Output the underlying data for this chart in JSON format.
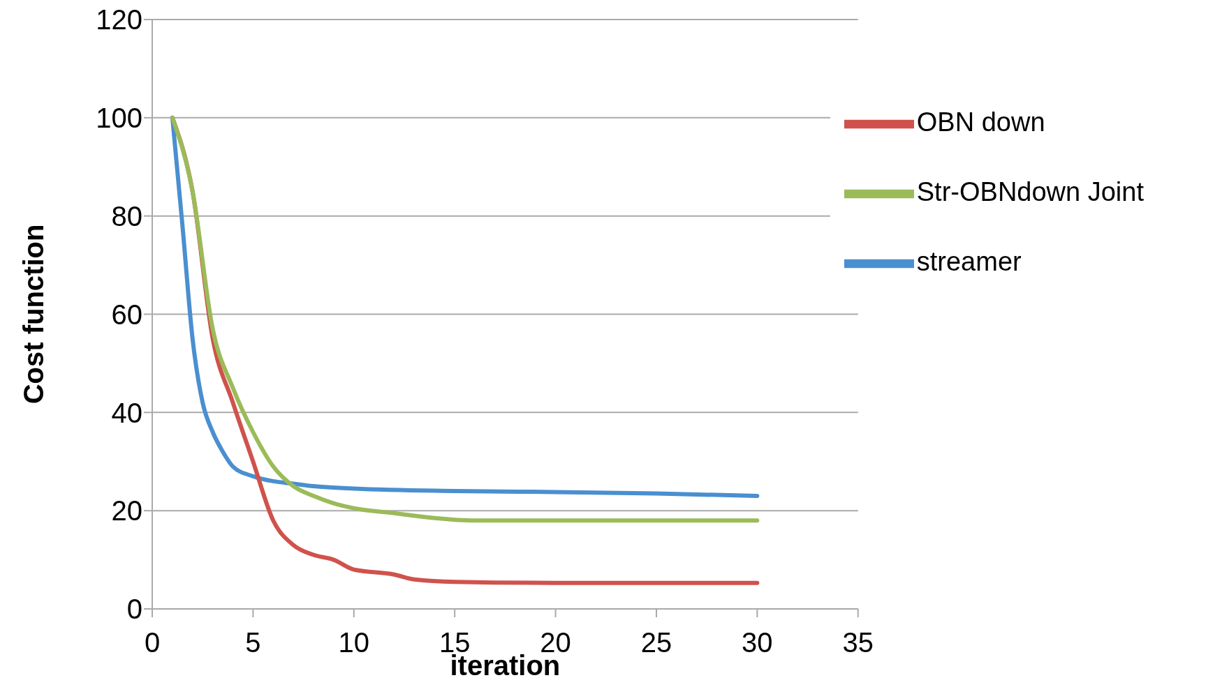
{
  "chart_data": {
    "type": "line",
    "xlabel": "iteration",
    "ylabel": "Cost function",
    "xlim": [
      0,
      35
    ],
    "xticks": [
      0,
      5,
      10,
      15,
      20,
      25,
      30,
      35
    ],
    "ylim": [
      0,
      120
    ],
    "yticks": [
      0,
      20,
      40,
      60,
      80,
      100,
      120
    ],
    "grid": "y",
    "legend": "top right",
    "marker": "none",
    "line_style": "solid",
    "series": [
      {
        "name": "streamer",
        "color": "#4a8fd0",
        "x": [
          1,
          1.5,
          2,
          2.5,
          3,
          3.5,
          4,
          5,
          6,
          7,
          8,
          10,
          15,
          20,
          25,
          30
        ],
        "values": [
          100,
          78,
          55,
          42,
          36,
          32,
          29,
          27,
          26,
          25.5,
          25,
          24.5,
          24,
          23.8,
          23.5,
          23
        ]
      },
      {
        "name": "OBN down",
        "color": "#d0524c",
        "x": [
          1,
          2,
          3,
          4,
          5,
          6,
          7,
          8,
          9,
          10,
          12,
          13,
          15,
          20,
          30
        ],
        "values": [
          100,
          85,
          55,
          42,
          30,
          18,
          13,
          11,
          10,
          8,
          7,
          6,
          5.5,
          5.3,
          5.3
        ]
      },
      {
        "name": "Str-OBNdown Joint",
        "color": "#9bbb59",
        "x": [
          1,
          2,
          3,
          4,
          5,
          6,
          7,
          8,
          9,
          10,
          12,
          14,
          16,
          20,
          30
        ],
        "values": [
          100,
          85,
          57,
          45,
          36,
          29,
          25,
          23,
          21.5,
          20.5,
          19.5,
          18.5,
          18,
          18,
          18
        ]
      }
    ]
  }
}
